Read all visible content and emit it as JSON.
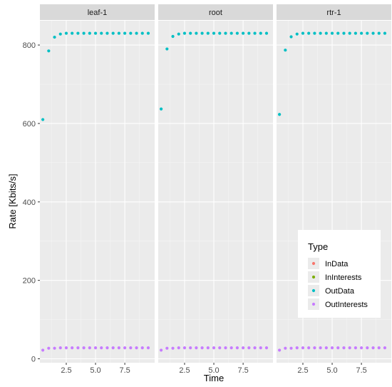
{
  "chart_data": {
    "type": "scatter",
    "xlabel": "Time",
    "ylabel": "Rate [Kbits/s]",
    "xlim": [
      0.25,
      10.05
    ],
    "ylim": [
      -10,
      862
    ],
    "x_ticks": [
      2.5,
      5.0,
      7.5
    ],
    "x_tick_labels": [
      "2.5",
      "5.0",
      "7.5"
    ],
    "y_ticks": [
      0,
      200,
      400,
      600,
      800
    ],
    "y_tick_labels": [
      "0",
      "200",
      "400",
      "600",
      "800"
    ],
    "grid": true,
    "legend": {
      "title": "Type",
      "position": "bottom-right",
      "entries": [
        {
          "name": "InData",
          "color": "#F8766D"
        },
        {
          "name": "InInterests",
          "color": "#7CAE00"
        },
        {
          "name": "OutData",
          "color": "#00BFC4"
        },
        {
          "name": "OutInterests",
          "color": "#C77CFF"
        }
      ]
    },
    "x": [
      0.5,
      1.0,
      1.5,
      2.0,
      2.5,
      3.0,
      3.5,
      4.0,
      4.5,
      5.0,
      5.5,
      6.0,
      6.5,
      7.0,
      7.5,
      8.0,
      8.5,
      9.0,
      9.5
    ],
    "panels": [
      {
        "title": "leaf-1",
        "series": [
          {
            "name": "OutData",
            "color": "#00BFC4",
            "values": [
              610,
              785,
              820,
              828,
              830,
              830,
              830,
              830,
              830,
              830,
              830,
              830,
              830,
              830,
              830,
              830,
              830,
              830,
              830
            ]
          },
          {
            "name": "OutInterests",
            "color": "#C77CFF",
            "values": [
              22,
              27,
              27,
              28,
              28,
              28,
              28,
              28,
              28,
              28,
              28,
              28,
              28,
              28,
              28,
              28,
              28,
              28,
              28
            ]
          }
        ]
      },
      {
        "title": "root",
        "series": [
          {
            "name": "OutData",
            "color": "#00BFC4",
            "values": [
              637,
              790,
              822,
              828,
              830,
              830,
              830,
              830,
              830,
              830,
              830,
              830,
              830,
              830,
              830,
              830,
              830,
              830,
              830
            ]
          },
          {
            "name": "OutInterests",
            "color": "#C77CFF",
            "values": [
              22,
              27,
              27,
              28,
              28,
              28,
              28,
              28,
              28,
              28,
              28,
              28,
              28,
              28,
              28,
              28,
              28,
              28,
              28
            ]
          }
        ]
      },
      {
        "title": "rtr-1",
        "series": [
          {
            "name": "OutData",
            "color": "#00BFC4",
            "values": [
              623,
              787,
              821,
              828,
              830,
              830,
              830,
              830,
              830,
              830,
              830,
              830,
              830,
              830,
              830,
              830,
              830,
              830,
              830
            ]
          },
          {
            "name": "OutInterests",
            "color": "#C77CFF",
            "values": [
              22,
              27,
              27,
              28,
              28,
              28,
              28,
              28,
              28,
              28,
              28,
              28,
              28,
              28,
              28,
              28,
              28,
              28,
              28
            ]
          }
        ]
      }
    ]
  }
}
